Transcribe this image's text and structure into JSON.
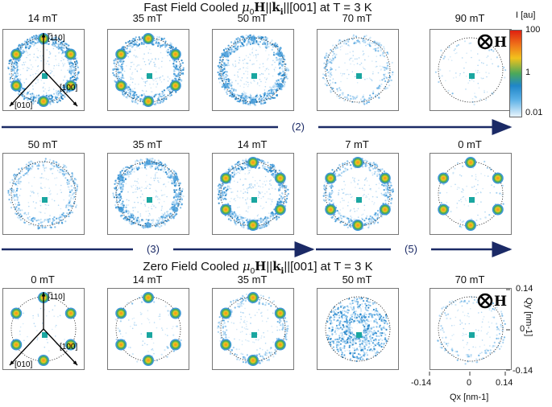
{
  "titles": {
    "top_prefix": "Fast Field Cooled ",
    "bottom_prefix": "Zero Field Cooled ",
    "suffix": " at T = 3 K"
  },
  "rows": [
    {
      "panels": [
        {
          "label": "14 mT",
          "type": "ring_spots",
          "ring": 0.9,
          "spots": 0.8
        },
        {
          "label": "35 mT",
          "type": "ring_spots",
          "ring": 0.85,
          "spots": 0.5
        },
        {
          "label": "50 mT",
          "type": "ring",
          "ring": 0.95,
          "spots": 0.2
        },
        {
          "label": "70 mT",
          "type": "weak",
          "ring": 0.35,
          "spots": 0
        },
        {
          "label": "90 mT",
          "type": "empty",
          "ring": 0.05,
          "spots": 0
        }
      ]
    },
    {
      "panels": [
        {
          "label": "50 mT",
          "type": "weak",
          "ring": 0.45,
          "spots": 0
        },
        {
          "label": "35 mT",
          "type": "ring",
          "ring": 0.8,
          "spots": 0.2
        },
        {
          "label": "14 mT",
          "type": "ring_spots",
          "ring": 0.85,
          "spots": 0.7
        },
        {
          "label": "7 mT",
          "type": "ring_spots",
          "ring": 0.55,
          "spots": 0.9
        },
        {
          "label": "0 mT",
          "type": "spots",
          "ring": 0.05,
          "spots": 1.0
        }
      ]
    },
    {
      "panels": [
        {
          "label": "0 mT",
          "type": "spots",
          "ring": 0.0,
          "spots": 1.0
        },
        {
          "label": "14 mT",
          "type": "spots",
          "ring": 0.05,
          "spots": 0.95
        },
        {
          "label": "35 mT",
          "type": "spots",
          "ring": 0.35,
          "spots": 0.6
        },
        {
          "label": "50 mT",
          "type": "disc",
          "ring": 0.9,
          "spots": 0
        },
        {
          "label": "70 mT",
          "type": "weak",
          "ring": 0.2,
          "spots": 0
        }
      ]
    }
  ],
  "direction_labels": {
    "a": "[",
    "b": "110]",
    "c": "[100]",
    "d": "[010]"
  },
  "arrow_labels": [
    "(2)",
    "(3)",
    "(5)"
  ],
  "field_symbol": "H",
  "colorbar": {
    "title": "I [au]",
    "ticks": [
      "100",
      "1",
      "0.01"
    ]
  },
  "axes": {
    "y_label": "Qy [nm-1]",
    "x_label": "Qx [nm-1]",
    "y_ticks": [
      "0.14",
      "0",
      "-0.14"
    ],
    "x_ticks": [
      "-0.14",
      "0",
      "0.14"
    ]
  }
}
